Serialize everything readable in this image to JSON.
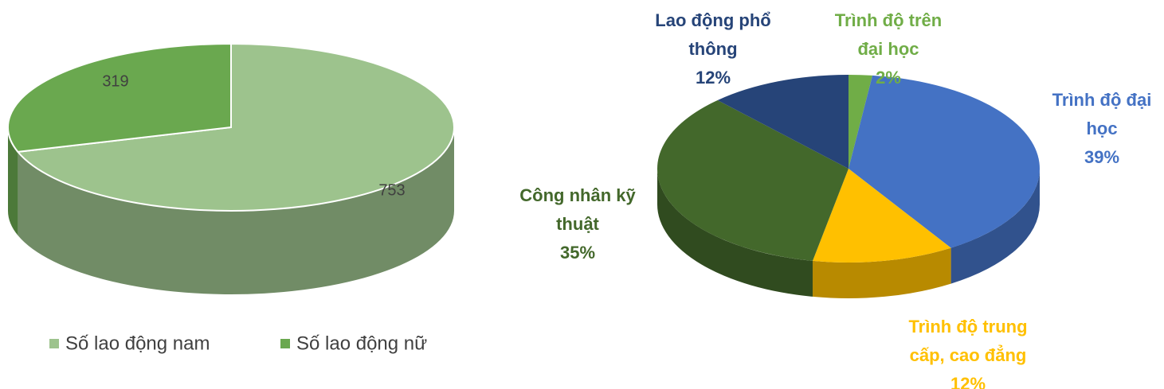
{
  "chart_data": [
    {
      "type": "pie",
      "categories": [
        "Số lao động nam",
        "Số lao động nữ"
      ],
      "values": [
        753,
        319
      ],
      "colors": [
        "#9dc38d",
        "#6aa84f"
      ],
      "legend": "bottom"
    },
    {
      "type": "pie",
      "categories": [
        "Trình độ trên đại học",
        "Trình độ đại học",
        "Trình độ trung cấp, cao đẳng",
        "Công nhân kỹ thuật",
        "Lao động phổ thông"
      ],
      "values": [
        2,
        39,
        12,
        35,
        12
      ],
      "value_labels": [
        "2%",
        "39%",
        "12%",
        "35%",
        "12%"
      ],
      "colors": [
        "#70ad47",
        "#4472c4",
        "#ffc000",
        "#43682b",
        "#264478"
      ]
    }
  ]
}
